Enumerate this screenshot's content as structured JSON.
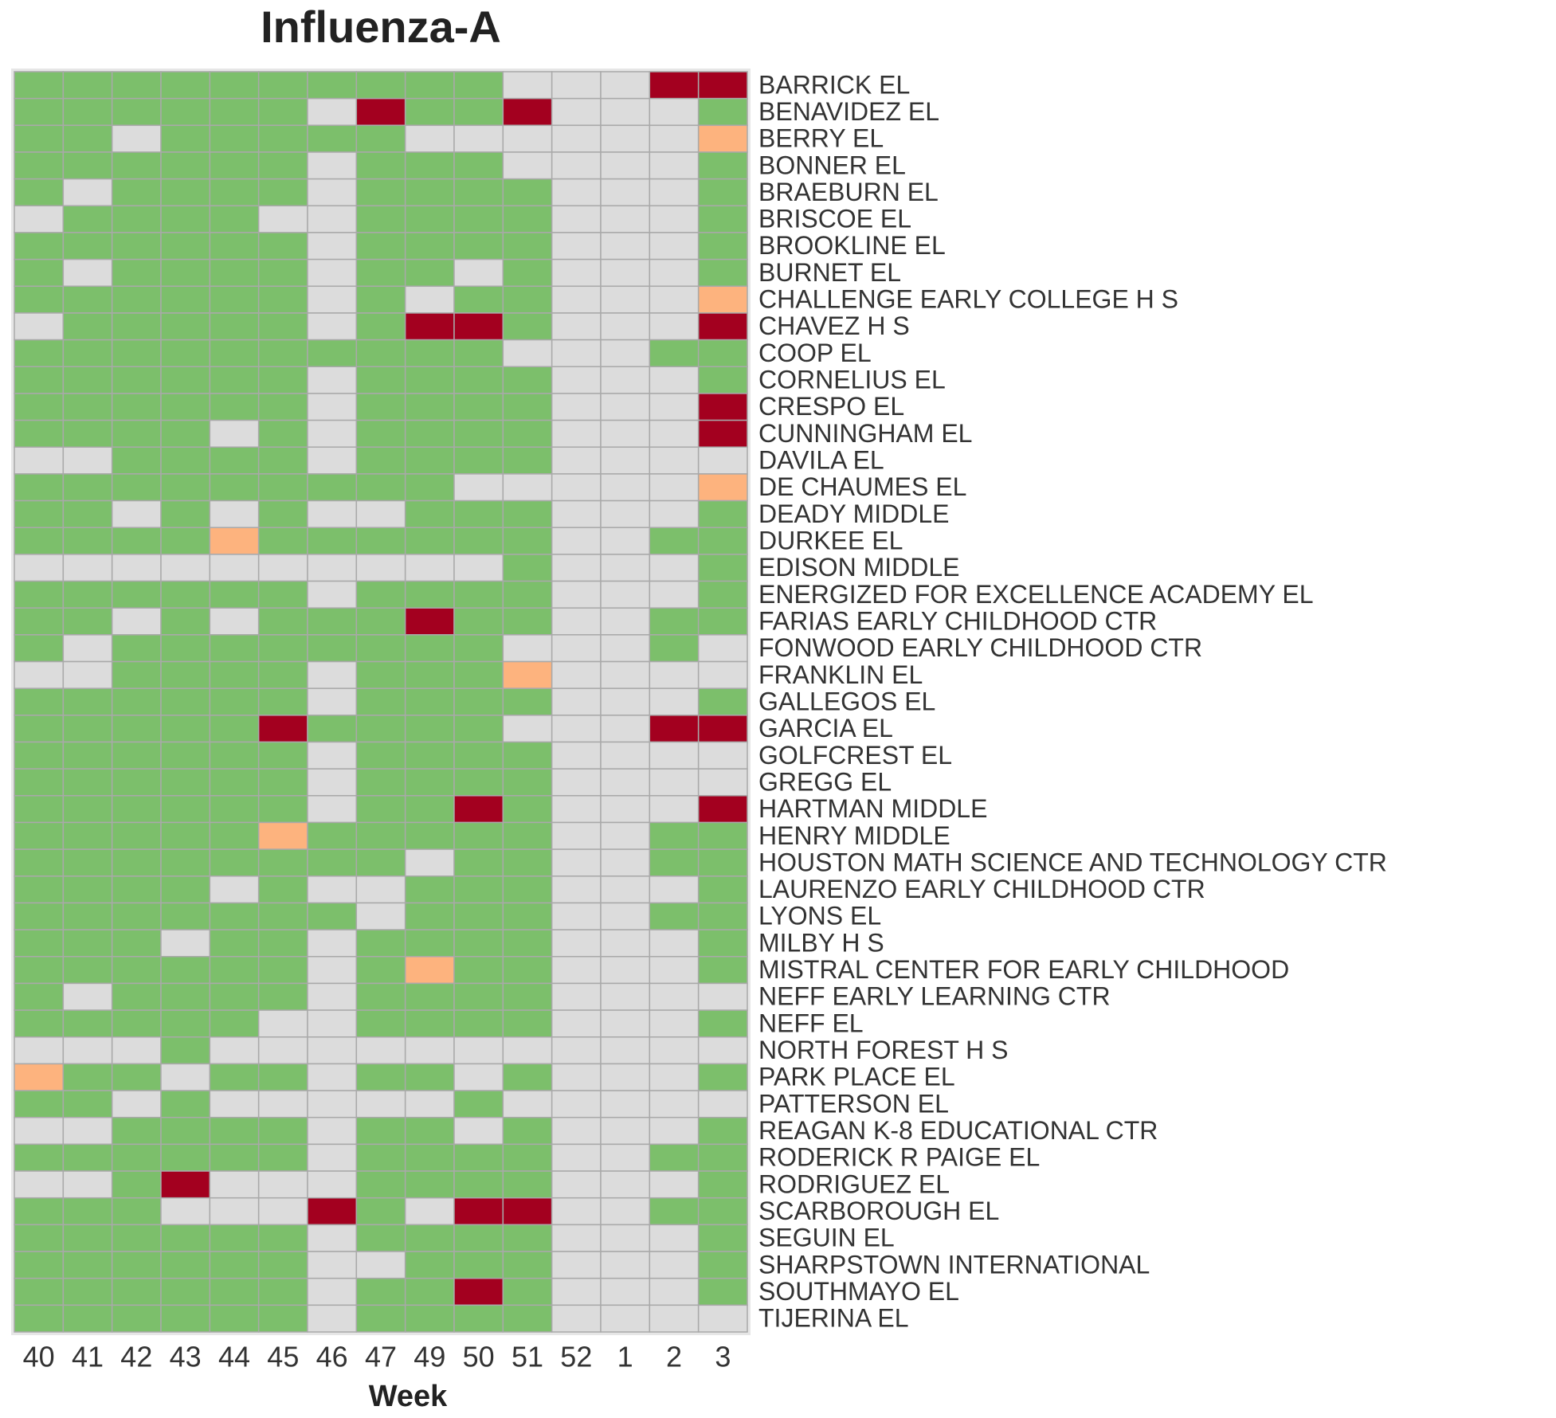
{
  "chart_data": {
    "type": "heatmap",
    "title": "Influenza-A",
    "xlabel": "Week",
    "x_categories": [
      "40",
      "41",
      "42",
      "43",
      "44",
      "45",
      "46",
      "47",
      "49",
      "50",
      "51",
      "52",
      "1",
      "2",
      "3"
    ],
    "y_categories": [
      "BARRICK EL",
      "BENAVIDEZ EL",
      "BERRY EL",
      "BONNER EL",
      "BRAEBURN EL",
      "BRISCOE EL",
      "BROOKLINE EL",
      "BURNET EL",
      "CHALLENGE EARLY COLLEGE H S",
      "CHAVEZ H S",
      "COOP EL",
      "CORNELIUS EL",
      "CRESPO EL",
      "CUNNINGHAM EL",
      "DAVILA EL",
      "DE CHAUMES EL",
      "DEADY MIDDLE",
      "DURKEE EL",
      "EDISON MIDDLE",
      "ENERGIZED FOR EXCELLENCE ACADEMY EL",
      "FARIAS EARLY CHILDHOOD CTR",
      "FONWOOD EARLY CHILDHOOD CTR",
      "FRANKLIN EL",
      "GALLEGOS EL",
      "GARCIA EL",
      "GOLFCREST EL",
      "GREGG EL",
      "HARTMAN MIDDLE",
      "HENRY MIDDLE",
      "HOUSTON MATH SCIENCE AND TECHNOLOGY CTR",
      "LAURENZO EARLY CHILDHOOD CTR",
      "LYONS EL",
      "MILBY H S",
      "MISTRAL CENTER FOR EARLY CHILDHOOD",
      "NEFF EARLY LEARNING CTR",
      "NEFF EL",
      "NORTH FOREST H S",
      "PARK PLACE EL",
      "PATTERSON EL",
      "REAGAN K-8 EDUCATIONAL CTR",
      "RODERICK R PAIGE EL",
      "RODRIGUEZ EL",
      "SCARBOROUGH EL",
      "SEGUIN EL",
      "SHARPSTOWN INTERNATIONAL",
      "SOUTHMAYO EL",
      "TIJERINA EL"
    ],
    "colors": [
      "#dcdcdc",
      "#7cbf6b",
      "#fdb37e",
      "#a3001f"
    ],
    "values": [
      [
        1,
        1,
        1,
        1,
        1,
        1,
        1,
        1,
        1,
        1,
        0,
        0,
        0,
        3,
        3
      ],
      [
        1,
        1,
        1,
        1,
        1,
        1,
        0,
        3,
        1,
        1,
        3,
        0,
        0,
        0,
        1
      ],
      [
        1,
        1,
        0,
        1,
        1,
        1,
        1,
        1,
        0,
        0,
        0,
        0,
        0,
        0,
        2
      ],
      [
        1,
        1,
        1,
        1,
        1,
        1,
        0,
        1,
        1,
        1,
        0,
        0,
        0,
        0,
        1
      ],
      [
        1,
        0,
        1,
        1,
        1,
        1,
        0,
        1,
        1,
        1,
        1,
        0,
        0,
        0,
        1
      ],
      [
        0,
        1,
        1,
        1,
        1,
        0,
        0,
        1,
        1,
        1,
        1,
        0,
        0,
        0,
        1
      ],
      [
        1,
        1,
        1,
        1,
        1,
        1,
        0,
        1,
        1,
        1,
        1,
        0,
        0,
        0,
        1
      ],
      [
        1,
        0,
        1,
        1,
        1,
        1,
        0,
        1,
        1,
        0,
        1,
        0,
        0,
        0,
        1
      ],
      [
        1,
        1,
        1,
        1,
        1,
        1,
        0,
        1,
        0,
        1,
        1,
        0,
        0,
        0,
        2
      ],
      [
        0,
        1,
        1,
        1,
        1,
        1,
        0,
        1,
        3,
        3,
        1,
        0,
        0,
        0,
        3
      ],
      [
        1,
        1,
        1,
        1,
        1,
        1,
        1,
        1,
        1,
        1,
        0,
        0,
        0,
        1,
        1
      ],
      [
        1,
        1,
        1,
        1,
        1,
        1,
        0,
        1,
        1,
        1,
        1,
        0,
        0,
        0,
        1
      ],
      [
        1,
        1,
        1,
        1,
        1,
        1,
        0,
        1,
        1,
        1,
        1,
        0,
        0,
        0,
        3
      ],
      [
        1,
        1,
        1,
        1,
        0,
        1,
        0,
        1,
        1,
        1,
        1,
        0,
        0,
        0,
        3
      ],
      [
        0,
        0,
        1,
        1,
        1,
        1,
        0,
        1,
        1,
        1,
        1,
        0,
        0,
        0,
        0
      ],
      [
        1,
        1,
        1,
        1,
        1,
        1,
        1,
        1,
        1,
        0,
        0,
        0,
        0,
        0,
        2
      ],
      [
        1,
        1,
        0,
        1,
        0,
        1,
        0,
        0,
        1,
        1,
        1,
        0,
        0,
        0,
        1
      ],
      [
        1,
        1,
        1,
        1,
        2,
        1,
        1,
        1,
        1,
        1,
        1,
        0,
        0,
        1,
        1
      ],
      [
        0,
        0,
        0,
        0,
        0,
        0,
        0,
        0,
        0,
        0,
        1,
        0,
        0,
        0,
        1
      ],
      [
        1,
        1,
        1,
        1,
        1,
        1,
        0,
        1,
        1,
        1,
        1,
        0,
        0,
        0,
        1
      ],
      [
        1,
        1,
        0,
        1,
        0,
        1,
        1,
        1,
        3,
        1,
        1,
        0,
        0,
        1,
        1
      ],
      [
        1,
        0,
        1,
        1,
        1,
        1,
        1,
        1,
        1,
        1,
        0,
        0,
        0,
        1,
        0
      ],
      [
        0,
        0,
        1,
        1,
        1,
        1,
        0,
        1,
        1,
        1,
        2,
        0,
        0,
        0,
        0
      ],
      [
        1,
        1,
        1,
        1,
        1,
        1,
        0,
        1,
        1,
        1,
        1,
        0,
        0,
        0,
        1
      ],
      [
        1,
        1,
        1,
        1,
        1,
        3,
        1,
        1,
        1,
        1,
        0,
        0,
        0,
        3,
        3
      ],
      [
        1,
        1,
        1,
        1,
        1,
        1,
        0,
        1,
        1,
        1,
        1,
        0,
        0,
        0,
        0
      ],
      [
        1,
        1,
        1,
        1,
        1,
        1,
        0,
        1,
        1,
        1,
        1,
        0,
        0,
        0,
        0
      ],
      [
        1,
        1,
        1,
        1,
        1,
        1,
        0,
        1,
        1,
        3,
        1,
        0,
        0,
        0,
        3
      ],
      [
        1,
        1,
        1,
        1,
        1,
        2,
        1,
        1,
        1,
        1,
        1,
        0,
        0,
        1,
        1
      ],
      [
        1,
        1,
        1,
        1,
        1,
        1,
        1,
        1,
        0,
        1,
        1,
        0,
        0,
        1,
        1
      ],
      [
        1,
        1,
        1,
        1,
        0,
        1,
        0,
        0,
        1,
        1,
        1,
        0,
        0,
        0,
        1
      ],
      [
        1,
        1,
        1,
        1,
        1,
        1,
        1,
        0,
        1,
        1,
        1,
        0,
        0,
        1,
        1
      ],
      [
        1,
        1,
        1,
        0,
        1,
        1,
        0,
        1,
        1,
        1,
        1,
        0,
        0,
        0,
        1
      ],
      [
        1,
        1,
        1,
        1,
        1,
        1,
        0,
        1,
        2,
        1,
        1,
        0,
        0,
        0,
        1
      ],
      [
        1,
        0,
        1,
        1,
        1,
        1,
        0,
        1,
        1,
        1,
        1,
        0,
        0,
        0,
        0
      ],
      [
        1,
        1,
        1,
        1,
        1,
        0,
        0,
        1,
        1,
        1,
        1,
        0,
        0,
        0,
        1
      ],
      [
        0,
        0,
        0,
        1,
        0,
        0,
        0,
        0,
        0,
        0,
        0,
        0,
        0,
        0,
        0
      ],
      [
        2,
        1,
        1,
        0,
        1,
        1,
        0,
        1,
        1,
        0,
        1,
        0,
        0,
        0,
        1
      ],
      [
        1,
        1,
        0,
        1,
        0,
        0,
        0,
        0,
        0,
        1,
        0,
        0,
        0,
        0,
        0
      ],
      [
        0,
        0,
        1,
        1,
        1,
        1,
        0,
        1,
        1,
        0,
        1,
        0,
        0,
        0,
        1
      ],
      [
        1,
        1,
        1,
        1,
        1,
        1,
        0,
        1,
        1,
        1,
        1,
        0,
        0,
        1,
        1
      ],
      [
        0,
        0,
        1,
        3,
        0,
        0,
        0,
        1,
        1,
        1,
        1,
        0,
        0,
        0,
        1
      ],
      [
        1,
        1,
        1,
        0,
        0,
        0,
        3,
        1,
        0,
        3,
        3,
        0,
        0,
        1,
        1
      ],
      [
        1,
        1,
        1,
        1,
        1,
        1,
        0,
        1,
        1,
        1,
        1,
        0,
        0,
        0,
        1
      ],
      [
        1,
        1,
        1,
        1,
        1,
        1,
        0,
        0,
        1,
        1,
        1,
        0,
        0,
        0,
        1
      ],
      [
        1,
        1,
        1,
        1,
        1,
        1,
        0,
        1,
        1,
        3,
        1,
        0,
        0,
        0,
        1
      ],
      [
        1,
        1,
        1,
        1,
        1,
        1,
        0,
        1,
        1,
        1,
        1,
        0,
        0,
        0,
        0
      ]
    ]
  }
}
